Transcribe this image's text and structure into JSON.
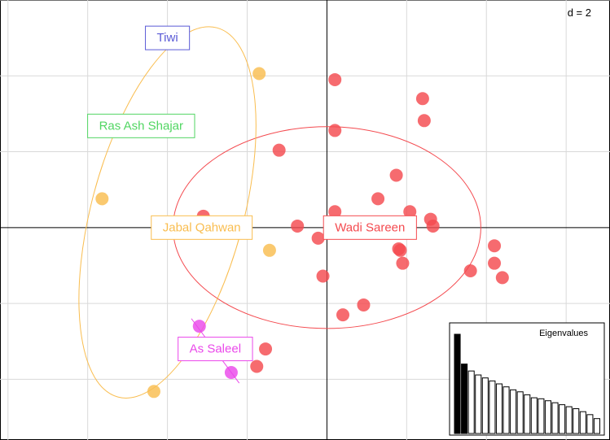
{
  "chart_data": {
    "type": "scatter",
    "d_label": "d = 2",
    "xlim": [
      -4.1,
      3.55
    ],
    "ylim": [
      -2.8,
      3.0
    ],
    "grid": true,
    "grid_step": 1,
    "groups": [
      {
        "name": "Wadi Sareen",
        "color": "#f44a4f",
        "ellipse": {
          "cx": 0.0,
          "cy": 0.0,
          "rx": 1.93,
          "ry": 1.33,
          "angle": 0
        },
        "label_pos": [
          0.54,
          0.0
        ],
        "points": [
          [
            0.1,
            1.95
          ],
          [
            1.2,
            1.7
          ],
          [
            1.22,
            1.41
          ],
          [
            0.1,
            1.28
          ],
          [
            -0.6,
            1.02
          ],
          [
            0.87,
            0.69
          ],
          [
            0.64,
            0.38
          ],
          [
            1.04,
            0.21
          ],
          [
            0.1,
            0.21
          ],
          [
            -1.55,
            0.15
          ],
          [
            -0.37,
            0.02
          ],
          [
            0.46,
            0.02
          ],
          [
            1.3,
            0.11
          ],
          [
            1.33,
            0.02
          ],
          [
            -0.11,
            -0.14
          ],
          [
            0.9,
            -0.28
          ],
          [
            0.92,
            -0.3
          ],
          [
            0.95,
            -0.47
          ],
          [
            2.1,
            -0.24
          ],
          [
            2.1,
            -0.47
          ],
          [
            1.8,
            -0.57
          ],
          [
            2.2,
            -0.66
          ],
          [
            -0.05,
            -0.64
          ],
          [
            0.46,
            -1.02
          ],
          [
            0.2,
            -1.15
          ],
          [
            -0.77,
            -1.6
          ],
          [
            -0.88,
            -1.83
          ]
        ]
      },
      {
        "name": "Jabal Qahwan",
        "color": "#f9bd4f",
        "ellipse": {
          "cx": -2.0,
          "cy": 0.2,
          "rx": 2.4,
          "ry": 1.0,
          "angle": -75
        },
        "label_pos": [
          -1.57,
          0.0
        ],
        "points": [
          [
            -0.85,
            2.03
          ],
          [
            -2.82,
            0.38
          ],
          [
            -0.72,
            -0.3
          ],
          [
            -2.17,
            -2.16
          ]
        ]
      },
      {
        "name": "Ras Ash Shajar",
        "color": "#51d662",
        "label_pos": [
          -2.33,
          1.34
        ],
        "points": []
      },
      {
        "name": "As Saleel",
        "color": "#ea48ea",
        "segment": [
          [
            -1.7,
            -1.2
          ],
          [
            -1.1,
            -2.05
          ]
        ],
        "label_pos": [
          -1.4,
          -1.6
        ],
        "points": [
          [
            -1.6,
            -1.3
          ],
          [
            -1.2,
            -1.91
          ]
        ]
      },
      {
        "name": "Tiwi",
        "color": "#5a5ad6",
        "label_pos": [
          -2.0,
          2.5
        ],
        "points": []
      }
    ],
    "eigenvalues": {
      "title": "Eigenvalues",
      "values": [
        10.0,
        7.0,
        6.3,
        5.9,
        5.6,
        5.3,
        5.0,
        4.7,
        4.4,
        4.2,
        3.9,
        3.6,
        3.5,
        3.3,
        3.1,
        2.9,
        2.7,
        2.5,
        2.2,
        1.9,
        1.5
      ],
      "highlighted": 2
    }
  }
}
